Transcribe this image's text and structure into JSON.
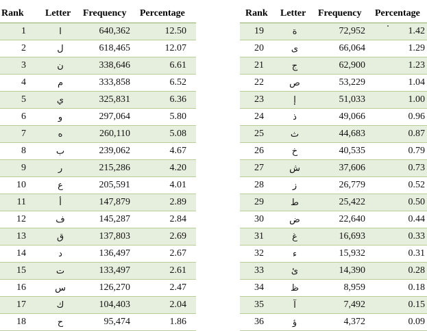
{
  "headers": {
    "rank": "Rank",
    "letter": "Letter",
    "frequency": "Frequency",
    "percentage": "Percentage"
  },
  "left_rows": [
    {
      "rank": "1",
      "letter": "ا",
      "frequency": "640,362",
      "percentage": "12.50"
    },
    {
      "rank": "2",
      "letter": "ل",
      "frequency": "618,465",
      "percentage": "12.07"
    },
    {
      "rank": "3",
      "letter": "ن",
      "frequency": "338,646",
      "percentage": "6.61"
    },
    {
      "rank": "4",
      "letter": "م",
      "frequency": "333,858",
      "percentage": "6.52"
    },
    {
      "rank": "5",
      "letter": "ي",
      "frequency": "325,831",
      "percentage": "6.36"
    },
    {
      "rank": "6",
      "letter": "و",
      "frequency": "297,064",
      "percentage": "5.80"
    },
    {
      "rank": "7",
      "letter": "ه",
      "frequency": "260,110",
      "percentage": "5.08"
    },
    {
      "rank": "8",
      "letter": "ب",
      "frequency": "239,062",
      "percentage": "4.67"
    },
    {
      "rank": "9",
      "letter": "ر",
      "frequency": "215,286",
      "percentage": "4.20"
    },
    {
      "rank": "10",
      "letter": "ع",
      "frequency": "205,591",
      "percentage": "4.01"
    },
    {
      "rank": "11",
      "letter": "أ",
      "frequency": "147,879",
      "percentage": "2.89"
    },
    {
      "rank": "12",
      "letter": "ف",
      "frequency": "145,287",
      "percentage": "2.84"
    },
    {
      "rank": "13",
      "letter": "ق",
      "frequency": "137,803",
      "percentage": "2.69"
    },
    {
      "rank": "14",
      "letter": "د",
      "frequency": "136,497",
      "percentage": "2.67"
    },
    {
      "rank": "15",
      "letter": "ت",
      "frequency": "133,497",
      "percentage": "2.61"
    },
    {
      "rank": "16",
      "letter": "س",
      "frequency": "126,270",
      "percentage": "2.47"
    },
    {
      "rank": "17",
      "letter": "ك",
      "frequency": "104,403",
      "percentage": "2.04"
    },
    {
      "rank": "18",
      "letter": "ح",
      "frequency": "95,474",
      "percentage": "1.86"
    }
  ],
  "right_rows": [
    {
      "rank": "19",
      "letter": "ة",
      "frequency": "72,952",
      "percentage": "1.42"
    },
    {
      "rank": "20",
      "letter": "ى",
      "frequency": "66,064",
      "percentage": "1.29"
    },
    {
      "rank": "21",
      "letter": "ج",
      "frequency": "62,900",
      "percentage": "1.23"
    },
    {
      "rank": "22",
      "letter": "ص",
      "frequency": "53,229",
      "percentage": "1.04"
    },
    {
      "rank": "23",
      "letter": "إ",
      "frequency": "51,033",
      "percentage": "1.00"
    },
    {
      "rank": "24",
      "letter": "ذ",
      "frequency": "49,066",
      "percentage": "0.96"
    },
    {
      "rank": "25",
      "letter": "ث",
      "frequency": "44,683",
      "percentage": "0.87"
    },
    {
      "rank": "26",
      "letter": "خ",
      "frequency": "40,535",
      "percentage": "0.79"
    },
    {
      "rank": "27",
      "letter": "ش",
      "frequency": "37,606",
      "percentage": "0.73"
    },
    {
      "rank": "28",
      "letter": "ز",
      "frequency": "26,779",
      "percentage": "0.52"
    },
    {
      "rank": "29",
      "letter": "ط",
      "frequency": "25,422",
      "percentage": "0.50"
    },
    {
      "rank": "30",
      "letter": "ض",
      "frequency": "22,640",
      "percentage": "0.44"
    },
    {
      "rank": "31",
      "letter": "غ",
      "frequency": "16,693",
      "percentage": "0.33"
    },
    {
      "rank": "32",
      "letter": "ء",
      "frequency": "15,932",
      "percentage": "0.31"
    },
    {
      "rank": "33",
      "letter": "ئ",
      "frequency": "14,390",
      "percentage": "0.28"
    },
    {
      "rank": "34",
      "letter": "ظ",
      "frequency": "8,959",
      "percentage": "0.18"
    },
    {
      "rank": "35",
      "letter": "آ",
      "frequency": "7,492",
      "percentage": "0.15"
    },
    {
      "rank": "36",
      "letter": "ؤ",
      "frequency": "4,372",
      "percentage": "0.09"
    }
  ],
  "colors": {
    "stripe": "#e6eedd",
    "row_rule": "#b8cc98",
    "header_rule": "#8fae6a"
  }
}
